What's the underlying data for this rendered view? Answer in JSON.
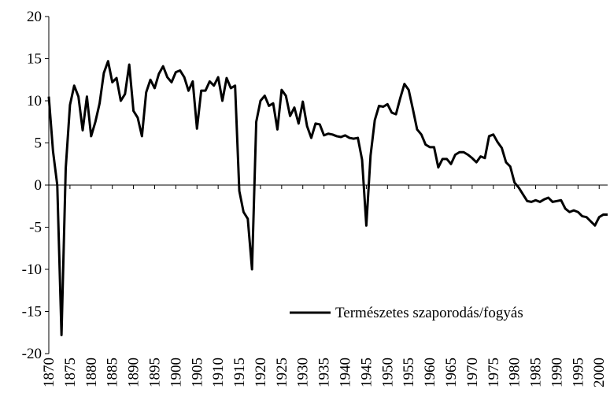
{
  "chart_data": {
    "type": "line",
    "x": [
      1870,
      1871,
      1872,
      1873,
      1874,
      1875,
      1876,
      1877,
      1878,
      1879,
      1880,
      1881,
      1882,
      1883,
      1884,
      1885,
      1886,
      1887,
      1888,
      1889,
      1890,
      1891,
      1892,
      1893,
      1894,
      1895,
      1896,
      1897,
      1898,
      1899,
      1900,
      1901,
      1902,
      1903,
      1904,
      1905,
      1906,
      1907,
      1908,
      1909,
      1910,
      1911,
      1912,
      1913,
      1914,
      1915,
      1916,
      1917,
      1918,
      1919,
      1920,
      1921,
      1922,
      1923,
      1924,
      1925,
      1926,
      1927,
      1928,
      1929,
      1930,
      1931,
      1932,
      1933,
      1934,
      1935,
      1936,
      1937,
      1938,
      1939,
      1940,
      1941,
      1942,
      1943,
      1944,
      1945,
      1946,
      1947,
      1948,
      1949,
      1950,
      1951,
      1952,
      1953,
      1954,
      1955,
      1956,
      1957,
      1958,
      1959,
      1960,
      1961,
      1962,
      1963,
      1964,
      1965,
      1966,
      1967,
      1968,
      1969,
      1970,
      1971,
      1972,
      1973,
      1974,
      1975,
      1976,
      1977,
      1978,
      1979,
      1980,
      1981,
      1982,
      1983,
      1984,
      1985,
      1986,
      1987,
      1988,
      1989,
      1990,
      1991,
      1992,
      1993,
      1994,
      1995,
      1996,
      1997,
      1998,
      1999,
      2000,
      2001,
      2002
    ],
    "series": [
      {
        "name": "Természetes szaporodás/fogyás",
        "color": "#000000",
        "values": [
          10.5,
          4,
          0,
          -17.8,
          2,
          9.5,
          11.8,
          10.5,
          6.5,
          10.5,
          5.8,
          7.5,
          9.7,
          13.3,
          14.7,
          12.2,
          12.7,
          10,
          10.8,
          14.3,
          8.8,
          8,
          5.8,
          11,
          12.5,
          11.5,
          13.2,
          14.1,
          12.8,
          12.2,
          13.4,
          13.6,
          12.8,
          11.2,
          12.3,
          6.7,
          11.2,
          11.2,
          12.3,
          11.8,
          12.8,
          10,
          12.7,
          11.5,
          11.8,
          -0.7,
          -3.2,
          -4,
          -10,
          7.5,
          10,
          10.6,
          9.4,
          9.7,
          6.6,
          11.3,
          10.6,
          8.2,
          9.2,
          7.3,
          9.9,
          7,
          5.6,
          7.3,
          7.2,
          5.9,
          6.1,
          6,
          5.8,
          5.7,
          5.9,
          5.6,
          5.5,
          5.6,
          3,
          -4.8,
          3.5,
          7.7,
          9.4,
          9.3,
          9.6,
          8.6,
          8.4,
          10.3,
          12,
          11.3,
          9,
          6.6,
          6,
          4.8,
          4.5,
          4.5,
          2.1,
          3.1,
          3.1,
          2.5,
          3.6,
          3.9,
          3.9,
          3.6,
          3.2,
          2.7,
          3.4,
          3.2,
          5.8,
          6,
          5.1,
          4.4,
          2.7,
          2.2,
          0.3,
          -0.3,
          -1.1,
          -1.9,
          -2,
          -1.8,
          -2,
          -1.7,
          -1.5,
          -2,
          -1.9,
          -1.8,
          -2.8,
          -3.2,
          -3,
          -3.2,
          -3.7,
          -3.8,
          -4.3,
          -4.8,
          -3.8,
          -3.5,
          -3.5
        ]
      }
    ],
    "xlim": [
      1870,
      2002
    ],
    "xticks": [
      1870,
      1875,
      1880,
      1885,
      1890,
      1895,
      1900,
      1905,
      1910,
      1915,
      1920,
      1925,
      1930,
      1935,
      1940,
      1945,
      1950,
      1955,
      1960,
      1965,
      1970,
      1975,
      1980,
      1985,
      1990,
      1995,
      2000
    ],
    "ylim": [
      -20,
      20
    ],
    "yticks": [
      -20,
      -15,
      -10,
      -5,
      0,
      5,
      10,
      15,
      20
    ],
    "legend": "lower right"
  }
}
